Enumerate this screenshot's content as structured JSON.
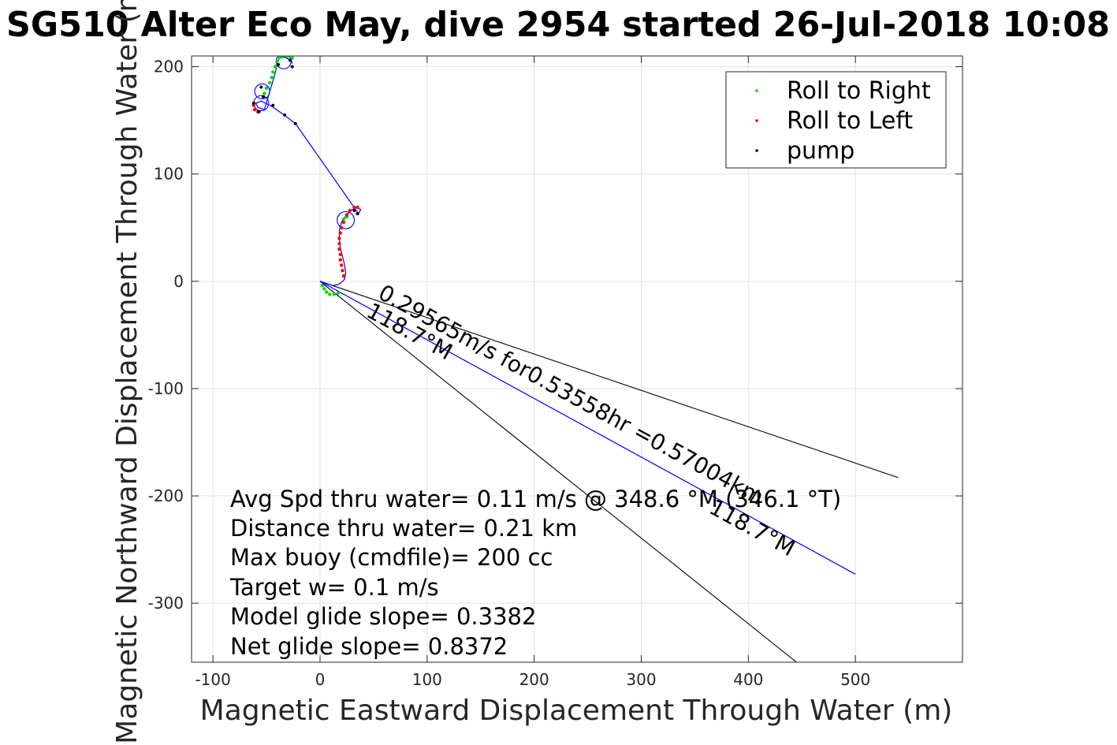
{
  "chart_data": {
    "type": "scatter",
    "title": "SG510 Alter Eco May, dive 2954 started 26-Jul-2018 10:08",
    "xlabel": "Magnetic Eastward Displacement Through Water (m)",
    "ylabel": "Magnetic Northward Displacement Through Water (m)",
    "xlim": [
      -120,
      600
    ],
    "ylim": [
      -355,
      210
    ],
    "x_ticks": [
      -100,
      0,
      100,
      200,
      300,
      400,
      500
    ],
    "y_ticks": [
      200,
      100,
      0,
      -100,
      -200,
      -300
    ],
    "grid": true,
    "legend_position": "top-right",
    "legend": [
      {
        "name": "Roll to Right",
        "color": "#00dd00"
      },
      {
        "name": "Roll to Left",
        "color": "#ff0000"
      },
      {
        "name": "pump",
        "color": "#000000"
      }
    ],
    "track": [
      [
        0,
        0
      ],
      [
        6,
        -2
      ],
      [
        12,
        -4
      ],
      [
        17,
        -3
      ],
      [
        20,
        -1
      ],
      [
        23,
        2
      ],
      [
        24,
        8
      ],
      [
        23,
        15
      ],
      [
        21,
        23
      ],
      [
        19,
        31
      ],
      [
        18,
        40
      ],
      [
        18,
        48
      ],
      [
        20,
        55
      ],
      [
        24,
        61
      ],
      [
        29,
        66
      ],
      [
        34,
        69
      ],
      [
        38,
        67
      ],
      [
        36,
        63
      ],
      [
        -23,
        147
      ],
      [
        -35,
        156
      ],
      [
        -45,
        163
      ],
      [
        -55,
        168
      ],
      [
        -60,
        166
      ],
      [
        -58,
        162
      ],
      [
        -52,
        160
      ],
      [
        -49,
        170
      ],
      [
        -46,
        180
      ],
      [
        -43,
        190
      ],
      [
        -41,
        198
      ],
      [
        -40,
        204
      ],
      [
        -38,
        208
      ],
      [
        -33,
        209
      ],
      [
        -27,
        206
      ],
      [
        -26,
        203
      ]
    ],
    "track_color": "#0000ff",
    "roll_right_points": [
      [
        2,
        -4
      ],
      [
        4,
        -7
      ],
      [
        6,
        -10
      ],
      [
        9,
        -12
      ],
      [
        13,
        -12
      ],
      [
        17,
        -11
      ],
      [
        25,
        60
      ],
      [
        22,
        58
      ],
      [
        -52,
        175
      ],
      [
        -50,
        180
      ],
      [
        -47,
        185
      ],
      [
        -45,
        190
      ],
      [
        -44,
        195
      ],
      [
        -42,
        200
      ],
      [
        -40,
        205
      ],
      [
        -38,
        209
      ],
      [
        -35,
        210
      ],
      [
        -30,
        210
      ],
      [
        -26,
        208
      ]
    ],
    "roll_left_points": [
      [
        22,
        5
      ],
      [
        21,
        10
      ],
      [
        20,
        15
      ],
      [
        19,
        20
      ],
      [
        19,
        25
      ],
      [
        18,
        30
      ],
      [
        18,
        35
      ],
      [
        18,
        40
      ],
      [
        19,
        45
      ],
      [
        20,
        50
      ],
      [
        22,
        55
      ],
      [
        25,
        62
      ],
      [
        28,
        66
      ],
      [
        32,
        69
      ],
      [
        35,
        69
      ],
      [
        -62,
        164
      ],
      [
        -61,
        160
      ],
      [
        -58,
        158
      ]
    ],
    "pump_points": [
      [
        -23,
        147
      ],
      [
        -33,
        155
      ],
      [
        -44,
        164
      ],
      [
        -53,
        172
      ],
      [
        -55,
        181
      ],
      [
        -57,
        158
      ],
      [
        -62,
        166
      ],
      [
        -39,
        202
      ],
      [
        -28,
        206
      ],
      [
        -26,
        200
      ],
      [
        32,
        66
      ],
      [
        35,
        63
      ]
    ],
    "circles": [
      {
        "cx": 24,
        "cy": 57,
        "r": 8
      },
      {
        "cx": -55,
        "cy": 166,
        "r": 7
      },
      {
        "cx": -54,
        "cy": 177,
        "r": 7
      },
      {
        "cx": -34,
        "cy": 205,
        "r": 7
      }
    ],
    "lines": [
      {
        "from": [
          0,
          0
        ],
        "to": [
          540,
          -183
        ],
        "color": "#000000"
      },
      {
        "from": [
          0,
          0
        ],
        "to": [
          445,
          -355
        ],
        "color": "#000000"
      },
      {
        "from": [
          0,
          0
        ],
        "to": [
          500,
          -273
        ],
        "color": "#ff00ff"
      },
      {
        "from": [
          0,
          0
        ],
        "to": [
          500,
          -273
        ],
        "color": "#0000ff"
      }
    ],
    "annotations": [
      {
        "text": "0.29565m/s for0.53558hr =0.57004km",
        "x": 53,
        "y": -15,
        "angle_deg": 28.6
      },
      {
        "text": "118.7°M",
        "x": 42,
        "y": -32,
        "angle_deg": 28.6
      },
      {
        "text": "118.7°M",
        "x": 362,
        "y": -215,
        "angle_deg": 28.6
      }
    ],
    "stats": [
      "Avg Spd thru water=  0.11 m/s @ 348.6 °M (346.1 °T)",
      "Distance thru water=  0.21 km",
      "Max buoy (cmdfile)= 200 cc",
      "Target w= 0.1 m/s",
      "Model glide slope= 0.3382",
      "Net glide slope= 0.8372"
    ]
  }
}
